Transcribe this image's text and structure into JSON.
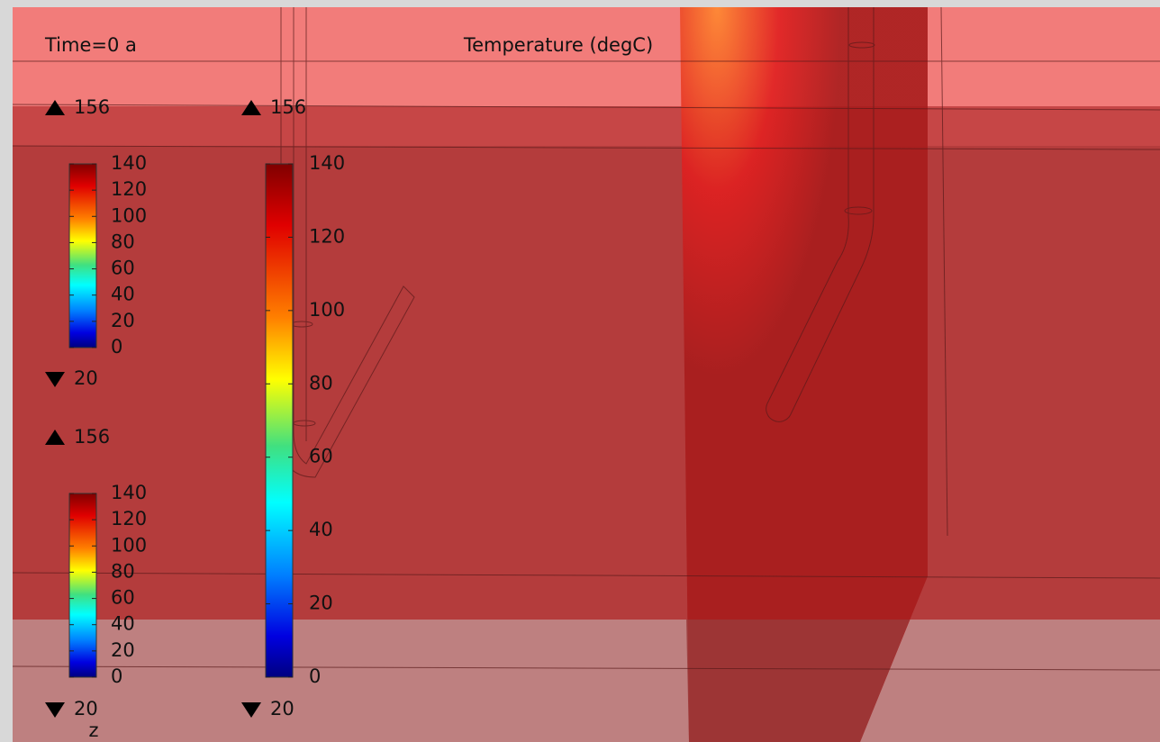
{
  "header": {
    "time": "Time=0 a",
    "title": "Temperature (degC)"
  },
  "legends": [
    {
      "max": "156",
      "min": "20",
      "ticks": [
        "140",
        "120",
        "100",
        "80",
        "60",
        "40",
        "20",
        "0"
      ]
    },
    {
      "max": "156",
      "min": "20",
      "ticks": [
        "140",
        "120",
        "100",
        "80",
        "60",
        "40",
        "20",
        "0"
      ]
    },
    {
      "max": "156",
      "min": "20",
      "ticks": [
        "140",
        "120",
        "100",
        "80",
        "60",
        "40",
        "20",
        "0"
      ]
    }
  ],
  "axis_label": "z"
}
